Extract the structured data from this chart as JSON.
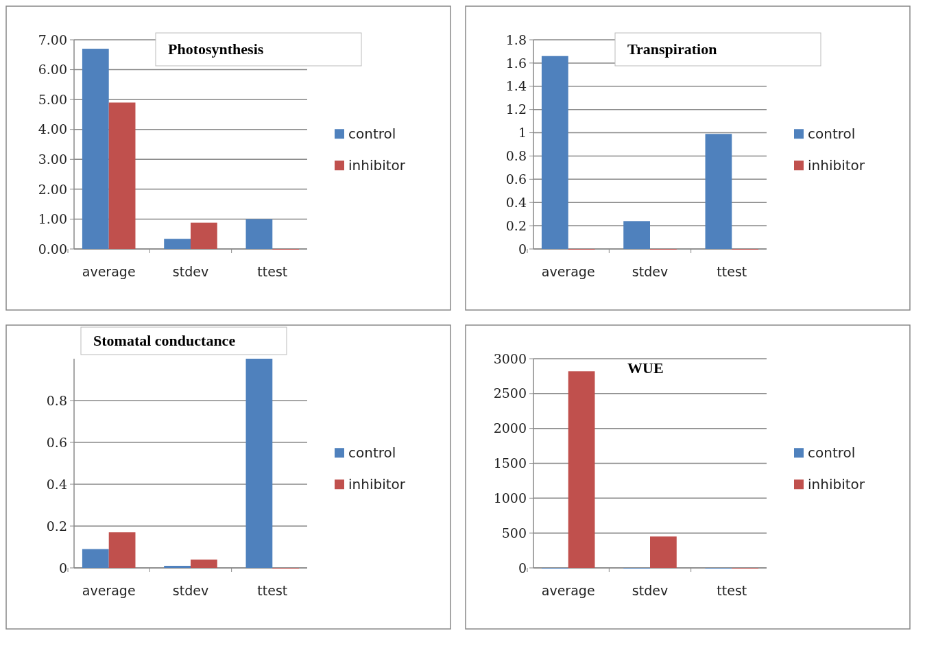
{
  "chart_data": [
    {
      "type": "bar",
      "title": "Photosynthesis",
      "categories": [
        "average",
        "stdev",
        "ttest"
      ],
      "series": [
        {
          "name": "control",
          "color": "#4f81bd",
          "values": [
            6.7,
            0.34,
            1.0
          ]
        },
        {
          "name": "inhibitor",
          "color": "#c0504d",
          "values": [
            4.9,
            0.88,
            0
          ]
        }
      ],
      "ylim": [
        0,
        7
      ],
      "yticks": [
        {
          "value": 0,
          "label": "0.00"
        },
        {
          "value": 1,
          "label": "1.00"
        },
        {
          "value": 2,
          "label": "2.00"
        },
        {
          "value": 3,
          "label": "3.00"
        },
        {
          "value": 4,
          "label": "4.00"
        },
        {
          "value": 5,
          "label": "5.00"
        },
        {
          "value": 6,
          "label": "6.00"
        },
        {
          "value": 7,
          "label": "7.00"
        }
      ],
      "grid": "y",
      "legend": "right"
    },
    {
      "type": "bar",
      "title": "Transpiration",
      "categories": [
        "average",
        "stdev",
        "ttest"
      ],
      "series": [
        {
          "name": "control",
          "color": "#4f81bd",
          "values": [
            1.66,
            0.24,
            0.99
          ]
        },
        {
          "name": "inhibitor",
          "color": "#c0504d",
          "values": [
            0,
            0,
            0
          ]
        }
      ],
      "ylim": [
        0,
        1.8
      ],
      "yticks": [
        0,
        0.2,
        0.4,
        0.6,
        0.8,
        1,
        1.2,
        1.4,
        1.6,
        1.8
      ],
      "grid": "y",
      "legend": "right"
    },
    {
      "type": "bar",
      "title": "Stomatal conductance",
      "categories": [
        "average",
        "stdev",
        "ttest"
      ],
      "series": [
        {
          "name": "control",
          "color": "#4f81bd",
          "values": [
            0.09,
            0.01,
            1.0
          ]
        },
        {
          "name": "inhibitor",
          "color": "#c0504d",
          "values": [
            0.17,
            0.04,
            0
          ]
        }
      ],
      "ylim": [
        0,
        1
      ],
      "yticks": [
        0,
        0.2,
        0.4,
        0.6,
        0.8
      ],
      "grid": "y",
      "legend": "right"
    },
    {
      "type": "bar",
      "title": "WUE",
      "categories": [
        "average",
        "stdev",
        "ttest"
      ],
      "series": [
        {
          "name": "control",
          "color": "#4f81bd",
          "values": [
            0,
            0,
            0
          ]
        },
        {
          "name": "inhibitor",
          "color": "#c0504d",
          "values": [
            2820,
            450,
            0
          ]
        }
      ],
      "ylim": [
        0,
        3000
      ],
      "yticks": [
        0,
        500,
        1000,
        1500,
        2000,
        2500,
        3000
      ],
      "grid": "y",
      "legend": "right"
    }
  ]
}
